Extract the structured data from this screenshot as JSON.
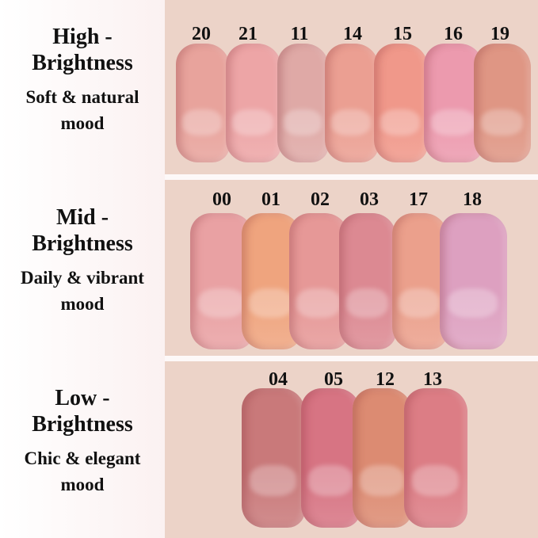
{
  "groups": [
    {
      "title": "High -\nBrightness",
      "title_l1": "High -",
      "title_l2": "Brightness",
      "mood_l1": "Soft & natural",
      "mood_l2": "mood",
      "shades": [
        {
          "num": "20",
          "color": "#e8a39c"
        },
        {
          "num": "21",
          "color": "#eda5a6"
        },
        {
          "num": "11",
          "color": "#dfa9a6"
        },
        {
          "num": "14",
          "color": "#eb9f92"
        },
        {
          "num": "15",
          "color": "#f0988a"
        },
        {
          "num": "16",
          "color": "#ec9aae"
        },
        {
          "num": "19",
          "color": "#df9684"
        }
      ]
    },
    {
      "title_l1": "Mid -",
      "title_l2": "Brightness",
      "mood_l1": "Daily & vibrant",
      "mood_l2": "mood",
      "shades": [
        {
          "num": "00",
          "color": "#e9a1a3"
        },
        {
          "num": "01",
          "color": "#efa47e"
        },
        {
          "num": "02",
          "color": "#e69897"
        },
        {
          "num": "03",
          "color": "#dc8992"
        },
        {
          "num": "17",
          "color": "#eba08c"
        },
        {
          "num": "18",
          "color": "#dda0c0"
        }
      ]
    },
    {
      "title_l1": "Low -",
      "title_l2": "Brightness",
      "mood_l1": "Chic & elegant",
      "mood_l2": "mood",
      "shades": [
        {
          "num": "04",
          "color": "#c9797a"
        },
        {
          "num": "05",
          "color": "#d77483"
        },
        {
          "num": "12",
          "color": "#dc8b72"
        },
        {
          "num": "13",
          "color": "#dc7d85"
        }
      ]
    }
  ]
}
